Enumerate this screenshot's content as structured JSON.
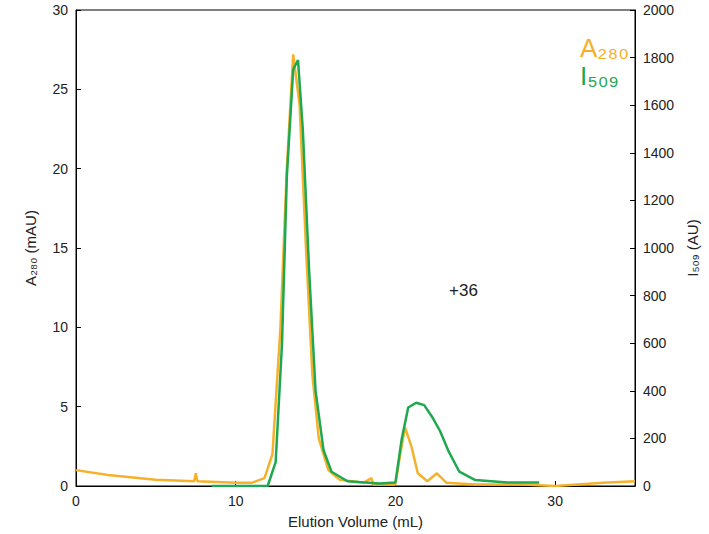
{
  "chart_data": {
    "type": "line",
    "xlabel": "Elution Volume (mL)",
    "ylabel": "A₂₈₀ (mAU)",
    "y2label": "I₅₀₉ (AU)",
    "xlim": [
      0,
      35
    ],
    "xticks": [
      0,
      10,
      20,
      30
    ],
    "ylim": [
      0,
      30
    ],
    "yticks": [
      0,
      5,
      10,
      15,
      20,
      25,
      30
    ],
    "y2lim": [
      0,
      2000
    ],
    "y2ticks": [
      0,
      200,
      400,
      600,
      800,
      1000,
      1200,
      1400,
      1600,
      1800,
      2000
    ],
    "grid": false,
    "legend": "top-right",
    "annotations": [
      "+36"
    ],
    "series": [
      {
        "name": "A₂₈₀",
        "color": "#f5b12a",
        "line_style": "solid",
        "x": [
          0,
          2,
          5,
          7.4,
          7.5,
          7.6,
          10,
          11,
          11.8,
          12.3,
          12.8,
          13.2,
          13.6,
          14.0,
          14.4,
          14.8,
          15.2,
          15.8,
          16.5,
          18,
          18.5,
          18.6,
          20,
          20.3,
          20.6,
          21.0,
          21.4,
          22,
          22.6,
          23.2,
          25,
          28,
          30,
          33,
          35
        ],
        "values": [
          1.0,
          0.7,
          0.4,
          0.3,
          0.8,
          0.3,
          0.2,
          0.2,
          0.5,
          2,
          10,
          20,
          27.2,
          24,
          15,
          7,
          3,
          1,
          0.4,
          0.2,
          0.5,
          0.1,
          0.1,
          2,
          3.7,
          2.5,
          0.8,
          0.3,
          0.8,
          0.2,
          0.1,
          0.1,
          0.0,
          0.2,
          0.3
        ]
      },
      {
        "name": "I₅₀₉",
        "color": "#1fa84f",
        "axis": "y2",
        "line_style": "solid",
        "x": [
          8.5,
          12,
          12.5,
          12.9,
          13.2,
          13.6,
          13.9,
          14.2,
          14.6,
          15,
          15.5,
          16,
          17,
          19,
          20,
          20.4,
          20.8,
          21.3,
          21.8,
          22.3,
          22.8,
          23.3,
          24,
          25,
          27,
          29
        ],
        "values": [
          0,
          0,
          100,
          600,
          1300,
          1750,
          1790,
          1500,
          900,
          400,
          150,
          60,
          20,
          10,
          15,
          200,
          330,
          350,
          340,
          290,
          230,
          150,
          60,
          25,
          15,
          15
        ]
      }
    ]
  }
}
